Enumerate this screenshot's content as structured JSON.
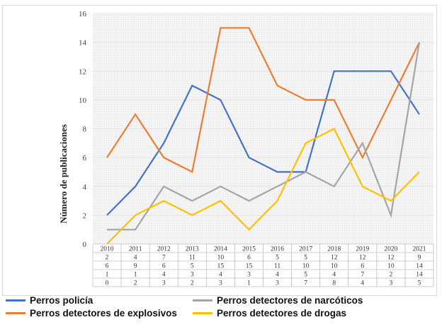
{
  "chart_data": {
    "type": "line",
    "title": "",
    "xlabel": "",
    "ylabel": "Número de publicaciones",
    "ylim": [
      0,
      16
    ],
    "yticks": [
      0,
      2,
      4,
      6,
      8,
      10,
      12,
      14,
      16
    ],
    "grid": true,
    "legend_position": "bottom",
    "categories": [
      "2010",
      "2011",
      "2012",
      "2013",
      "2014",
      "2015",
      "2016",
      "2017",
      "2018",
      "2019",
      "2020",
      "2021"
    ],
    "series": [
      {
        "name": "Perros policía",
        "color": "#4472c4",
        "values": [
          2,
          4,
          7,
          11,
          10,
          6,
          5,
          5,
          12,
          12,
          12,
          9
        ]
      },
      {
        "name": "Perros detectores de explosivos",
        "color": "#ed7d31",
        "values": [
          6,
          9,
          6,
          5,
          15,
          15,
          11,
          10,
          10,
          6,
          10,
          14
        ]
      },
      {
        "name": "Perros detectores de narcóticos",
        "color": "#a5a5a5",
        "values": [
          1,
          1,
          4,
          3,
          4,
          3,
          4,
          5,
          4,
          7,
          2,
          14
        ]
      },
      {
        "name": "Perros detectores de drogas",
        "color": "#ffc000",
        "values": [
          0,
          2,
          3,
          2,
          3,
          1,
          3,
          7,
          8,
          4,
          3,
          5
        ]
      }
    ],
    "data_table": {
      "header": [
        "2010",
        "2011",
        "2012",
        "2013",
        "2014",
        "2015",
        "2016",
        "2017",
        "2018",
        "2019",
        "2020",
        "2021"
      ],
      "rows": [
        [
          "2",
          "4",
          "7",
          "11",
          "10",
          "6",
          "5",
          "5",
          "12",
          "12",
          "12",
          "9"
        ],
        [
          "6",
          "9",
          "6",
          "5",
          "15",
          "15",
          "11",
          "10",
          "10",
          "6",
          "10",
          "14"
        ],
        [
          "1",
          "1",
          "4",
          "3",
          "4",
          "3",
          "4",
          "5",
          "4",
          "7",
          "2",
          "14"
        ],
        [
          "0",
          "2",
          "3",
          "2",
          "3",
          "1",
          "3",
          "7",
          "8",
          "4",
          "3",
          "5"
        ]
      ]
    }
  },
  "legend": [
    {
      "label": "Perros policía",
      "color": "#4472c4"
    },
    {
      "label": "Perros detectores de explosivos",
      "color": "#ed7d31"
    },
    {
      "label": "Perros detectores de narcóticos",
      "color": "#a5a5a5"
    },
    {
      "label": "Perros detectores de drogas",
      "color": "#ffc000"
    }
  ]
}
